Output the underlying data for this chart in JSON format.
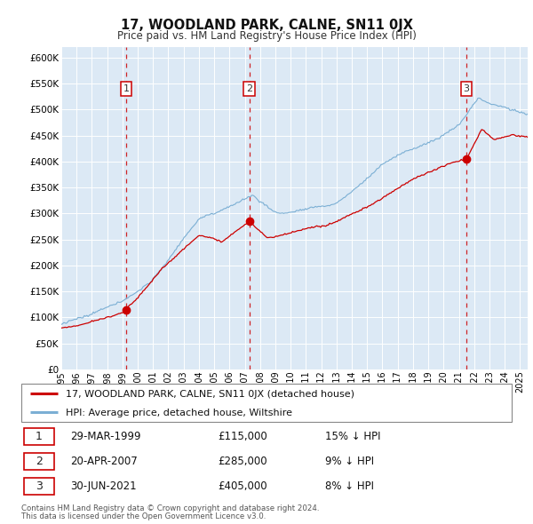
{
  "title": "17, WOODLAND PARK, CALNE, SN11 0JX",
  "subtitle": "Price paid vs. HM Land Registry's House Price Index (HPI)",
  "legend_line1": "17, WOODLAND PARK, CALNE, SN11 0JX (detached house)",
  "legend_line2": "HPI: Average price, detached house, Wiltshire",
  "footnote1": "Contains HM Land Registry data © Crown copyright and database right 2024.",
  "footnote2": "This data is licensed under the Open Government Licence v3.0.",
  "transactions": [
    {
      "num": 1,
      "date": "29-MAR-1999",
      "price": 115000,
      "pct": "15%",
      "dir": "↓",
      "x_year": 1999.24
    },
    {
      "num": 2,
      "date": "20-APR-2007",
      "price": 285000,
      "pct": "9%",
      "dir": "↓",
      "x_year": 2007.3
    },
    {
      "num": 3,
      "date": "30-JUN-2021",
      "price": 405000,
      "pct": "8%",
      "dir": "↓",
      "x_year": 2021.49
    }
  ],
  "hpi_color": "#7bafd4",
  "price_color": "#cc0000",
  "dot_color": "#cc0000",
  "vline_color": "#cc0000",
  "background_color": "#dce9f5",
  "grid_color": "#c8d8e8",
  "ylim": [
    0,
    620000
  ],
  "xlim_start": 1995.0,
  "xlim_end": 2025.5,
  "yticks": [
    0,
    50000,
    100000,
    150000,
    200000,
    250000,
    300000,
    350000,
    400000,
    450000,
    500000,
    550000,
    600000
  ],
  "xtick_years": [
    1995,
    1996,
    1997,
    1998,
    1999,
    2000,
    2001,
    2002,
    2003,
    2004,
    2005,
    2006,
    2007,
    2008,
    2009,
    2010,
    2011,
    2012,
    2013,
    2014,
    2015,
    2016,
    2017,
    2018,
    2019,
    2020,
    2021,
    2022,
    2023,
    2024,
    2025
  ]
}
